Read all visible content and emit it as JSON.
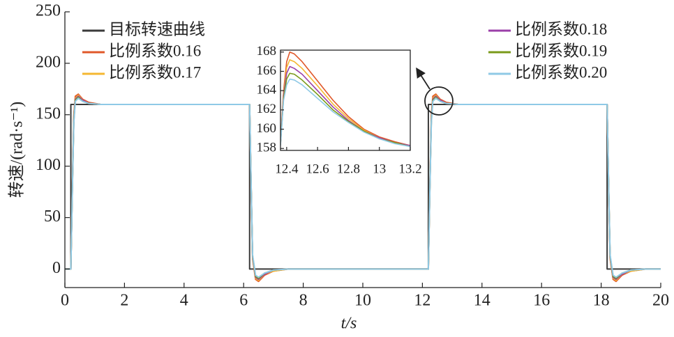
{
  "chart_data": [
    {
      "type": "line",
      "xlabel": "t/s",
      "ylabel": "转速/(rad·s⁻¹)",
      "xlim": [
        0,
        20
      ],
      "xticks": [
        0,
        2,
        4,
        6,
        8,
        10,
        12,
        14,
        16,
        18,
        20
      ],
      "ylim": [
        -18,
        250
      ],
      "yticks": [
        0,
        50,
        100,
        150,
        200,
        250
      ],
      "series": [
        {
          "name": "目标转速曲线",
          "color": "#3a3a3a",
          "x": [
            0,
            0.2,
            0.2,
            6.2,
            6.2,
            12.2,
            12.2,
            18.2,
            18.2,
            20
          ],
          "values": [
            0,
            0,
            160,
            160,
            0,
            0,
            160,
            160,
            0,
            0
          ]
        },
        {
          "name": "比例系数0.16",
          "color": "#e0582a",
          "x": [
            0,
            0.2,
            0.25,
            0.3,
            0.35,
            0.45,
            0.6,
            0.8,
            1.2,
            6.2,
            6.25,
            6.3,
            6.4,
            6.5,
            6.7,
            7.0,
            7.5,
            12.2,
            12.25,
            12.3,
            12.35,
            12.45,
            12.6,
            12.8,
            13.2,
            18.2,
            18.25,
            18.3,
            18.4,
            18.5,
            18.7,
            19,
            19.5,
            20
          ],
          "values": [
            0,
            0,
            80,
            150,
            168,
            170,
            165,
            162,
            160,
            160,
            80,
            10,
            -10,
            -12,
            -6,
            -2,
            0,
            0,
            80,
            150,
            168,
            170,
            165,
            162,
            160,
            160,
            80,
            10,
            -10,
            -12,
            -6,
            -2,
            0,
            0
          ]
        },
        {
          "name": "比例系数0.17",
          "color": "#f5b731",
          "x": [
            0,
            0.2,
            0.25,
            0.3,
            0.35,
            0.45,
            0.6,
            0.8,
            1.2,
            6.2,
            6.25,
            6.3,
            6.4,
            6.5,
            6.7,
            7.0,
            7.5,
            12.2,
            12.25,
            12.3,
            12.35,
            12.45,
            12.6,
            12.8,
            13.2,
            18.2,
            18.25,
            18.3,
            18.4,
            18.5,
            18.7,
            19,
            19.5,
            20
          ],
          "values": [
            0,
            0,
            79,
            148,
            166,
            169,
            164,
            161,
            160,
            160,
            81,
            11,
            -9,
            -11,
            -5,
            -2,
            0,
            0,
            79,
            148,
            166,
            169,
            164,
            161,
            160,
            160,
            81,
            11,
            -9,
            -11,
            -5,
            -2,
            0,
            0
          ]
        },
        {
          "name": "比例系数0.18",
          "color": "#9b3fa8",
          "x": [
            0,
            0.2,
            0.25,
            0.3,
            0.35,
            0.45,
            0.6,
            0.8,
            1.2,
            6.2,
            6.25,
            6.3,
            6.4,
            6.5,
            6.7,
            7.0,
            7.5,
            12.2,
            12.25,
            12.3,
            12.35,
            12.45,
            12.6,
            12.8,
            13.2,
            18.2,
            18.25,
            18.3,
            18.4,
            18.5,
            18.7,
            19,
            19.5,
            20
          ],
          "values": [
            0,
            0,
            78,
            146,
            165,
            168,
            164,
            161,
            160,
            160,
            82,
            12,
            -8,
            -10,
            -5,
            -1,
            0,
            0,
            78,
            146,
            165,
            168,
            164,
            161,
            160,
            160,
            82,
            12,
            -8,
            -10,
            -5,
            -1,
            0,
            0
          ]
        },
        {
          "name": "比例系数0.19",
          "color": "#7a9a1a",
          "x": [
            0,
            0.2,
            0.25,
            0.3,
            0.35,
            0.45,
            0.6,
            0.8,
            1.2,
            6.2,
            6.25,
            6.3,
            6.4,
            6.5,
            6.7,
            7.0,
            7.5,
            12.2,
            12.25,
            12.3,
            12.35,
            12.45,
            12.6,
            12.8,
            13.2,
            18.2,
            18.25,
            18.3,
            18.4,
            18.5,
            18.7,
            19,
            19.5,
            20
          ],
          "values": [
            0,
            0,
            77,
            144,
            164,
            167,
            163,
            161,
            160,
            160,
            83,
            13,
            -7,
            -9,
            -4,
            -1,
            0,
            0,
            77,
            144,
            164,
            167,
            163,
            161,
            160,
            160,
            83,
            13,
            -7,
            -9,
            -4,
            -1,
            0,
            0
          ]
        },
        {
          "name": "比例系数0.20",
          "color": "#8fc9e6",
          "x": [
            0,
            0.2,
            0.25,
            0.3,
            0.35,
            0.45,
            0.6,
            0.8,
            1.2,
            6.2,
            6.25,
            6.3,
            6.4,
            6.5,
            6.7,
            7.0,
            7.5,
            12.2,
            12.25,
            12.3,
            12.35,
            12.45,
            12.6,
            12.8,
            13.2,
            18.2,
            18.25,
            18.3,
            18.4,
            18.5,
            18.7,
            19,
            19.5,
            20
          ],
          "values": [
            0,
            0,
            76,
            142,
            163,
            166,
            163,
            161,
            160,
            160,
            84,
            14,
            -6,
            -8,
            -4,
            -1,
            0,
            0,
            76,
            142,
            163,
            166,
            163,
            161,
            160,
            160,
            84,
            14,
            -6,
            -8,
            -4,
            -1,
            0,
            0
          ]
        }
      ]
    },
    {
      "type": "line",
      "xlim": [
        12.36,
        13.2
      ],
      "xticks": [
        12.4,
        12.6,
        12.8,
        13,
        13.2
      ],
      "ylim": [
        157.8,
        168.2
      ],
      "yticks": [
        158,
        160,
        162,
        164,
        166,
        168
      ],
      "x": [
        12.36,
        12.38,
        12.4,
        12.42,
        12.45,
        12.5,
        12.6,
        12.7,
        12.8,
        12.9,
        13.0,
        13.1,
        13.2
      ],
      "series": [
        {
          "color": "#e0582a",
          "values": [
            158.5,
            164,
            167,
            168,
            167.8,
            167,
            165,
            163,
            161.3,
            160,
            159.2,
            158.7,
            158.3
          ]
        },
        {
          "color": "#f5b731",
          "values": [
            158.5,
            163.8,
            166.4,
            167.2,
            167,
            166.3,
            164.5,
            162.6,
            161.1,
            159.9,
            159.1,
            158.6,
            158.3
          ]
        },
        {
          "color": "#9b3fa8",
          "values": [
            158.5,
            163.5,
            165.8,
            166.5,
            166.3,
            165.7,
            164,
            162.3,
            160.9,
            159.8,
            159.1,
            158.6,
            158.3
          ]
        },
        {
          "color": "#7a9a1a",
          "values": [
            158.4,
            163.2,
            165.2,
            165.8,
            165.7,
            165.1,
            163.6,
            162,
            160.8,
            159.8,
            159,
            158.6,
            158.2
          ]
        },
        {
          "color": "#8fc9e6",
          "values": [
            158.3,
            163,
            164.6,
            165.2,
            165.1,
            164.6,
            163.2,
            161.8,
            160.7,
            159.7,
            159,
            158.5,
            158.2
          ]
        }
      ]
    }
  ]
}
